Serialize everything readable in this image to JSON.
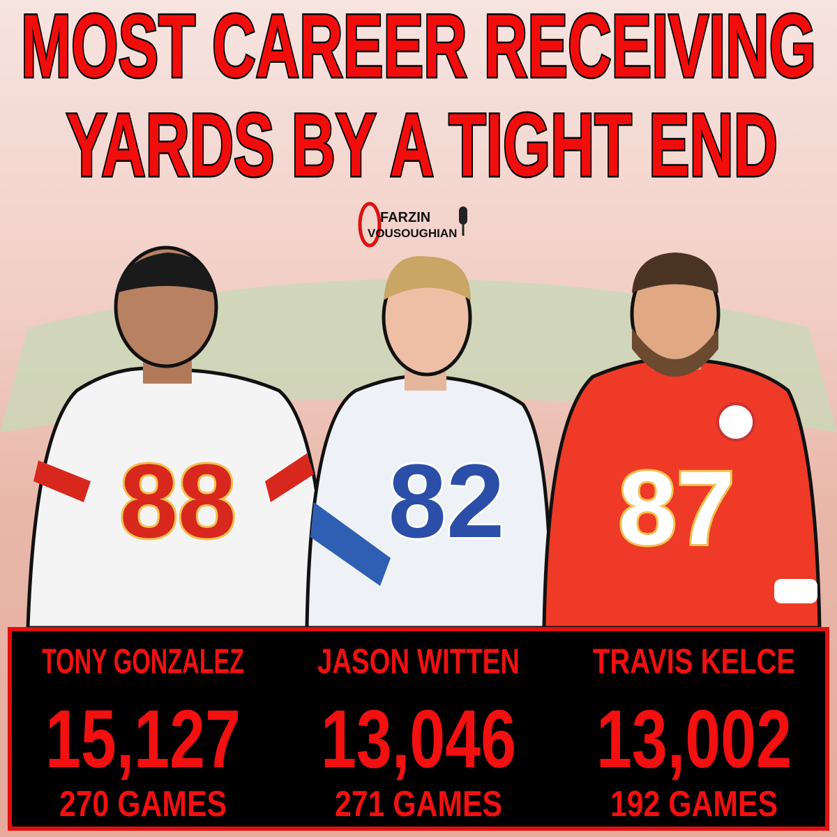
{
  "header": {
    "title_lines": [
      "MOST CAREER RECEIVING",
      "YARDS BY A TIGHT END"
    ]
  },
  "logo": {
    "line1": "FARZIN",
    "line2": "VOUSOUGHIAN"
  },
  "players": [
    {
      "jersey": "88",
      "name": "TONY GONZALEZ",
      "yards": "15,127",
      "games": "270 GAMES"
    },
    {
      "jersey": "82",
      "name": "JASON WITTEN",
      "yards": "13,046",
      "games": "271 GAMES"
    },
    {
      "jersey": "87",
      "name": "TRAVIS KELCE",
      "yards": "13,002",
      "games": "192 GAMES"
    }
  ]
}
